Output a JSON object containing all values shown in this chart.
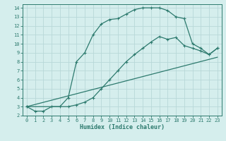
{
  "xlabel": "Humidex (Indice chaleur)",
  "bg_color": "#d5eeed",
  "grid_color": "#b8d8d8",
  "line_color": "#2d7a6e",
  "xlim": [
    -0.5,
    23.5
  ],
  "ylim": [
    2,
    14.4
  ],
  "xticks": [
    0,
    1,
    2,
    3,
    4,
    5,
    6,
    7,
    8,
    9,
    10,
    11,
    12,
    13,
    14,
    15,
    16,
    17,
    18,
    19,
    20,
    21,
    22,
    23
  ],
  "yticks": [
    2,
    3,
    4,
    5,
    6,
    7,
    8,
    9,
    10,
    11,
    12,
    13,
    14
  ],
  "line1_x": [
    0,
    1,
    2,
    3,
    4,
    5,
    6,
    7,
    8,
    9,
    10,
    11,
    12,
    13,
    14,
    15,
    16,
    17,
    18,
    19,
    20,
    21,
    22,
    23
  ],
  "line1_y": [
    3.0,
    2.5,
    2.5,
    3.0,
    3.0,
    4.0,
    8.0,
    9.0,
    11.0,
    12.2,
    12.7,
    12.8,
    13.3,
    13.8,
    14.0,
    14.0,
    14.0,
    13.7,
    13.0,
    12.8,
    10.0,
    9.5,
    8.8,
    9.5
  ],
  "line2_x": [
    0,
    5,
    6,
    7,
    8,
    9,
    10,
    11,
    12,
    13,
    14,
    15,
    16,
    17,
    18,
    19,
    20,
    21,
    22,
    23
  ],
  "line2_y": [
    3.0,
    3.0,
    3.2,
    3.5,
    4.0,
    5.0,
    6.0,
    7.0,
    8.0,
    8.8,
    9.5,
    10.2,
    10.8,
    10.5,
    10.7,
    9.8,
    9.5,
    9.2,
    8.8,
    9.5
  ],
  "line3_x": [
    0,
    23
  ],
  "line3_y": [
    3.0,
    8.5
  ]
}
